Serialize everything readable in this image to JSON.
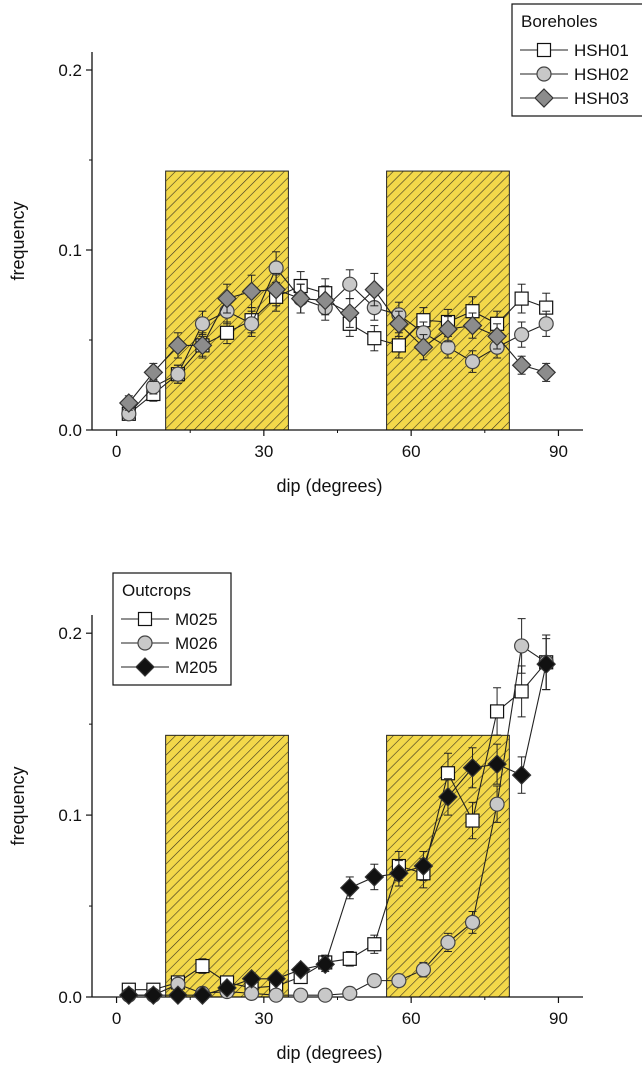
{
  "chart_data": [
    {
      "type": "scatter",
      "title": "",
      "xlabel": "dip (degrees)",
      "ylabel": "frequency",
      "xlim": [
        -5,
        95
      ],
      "ylim": [
        0,
        0.21
      ],
      "xticks": [
        "0",
        "30",
        "60",
        "90"
      ],
      "yticks": [
        "0.0",
        "0.1",
        "0.2"
      ],
      "shaded_ranges": [
        [
          10,
          35
        ],
        [
          55,
          80
        ]
      ],
      "shade_color": "#f3d84a",
      "legend": {
        "title": "Boreholes",
        "placement": "top-right"
      },
      "series": [
        {
          "name": "HSH01",
          "marker": "square",
          "fill": "#ffffff",
          "x": [
            2.5,
            7.5,
            12.5,
            17.5,
            22.5,
            27.5,
            32.5,
            37.5,
            42.5,
            47.5,
            52.5,
            57.5,
            62.5,
            67.5,
            72.5,
            77.5,
            82.5,
            87.5
          ],
          "y": [
            0.009,
            0.02,
            0.031,
            0.047,
            0.054,
            0.061,
            0.074,
            0.08,
            0.076,
            0.059,
            0.051,
            0.047,
            0.061,
            0.06,
            0.066,
            0.059,
            0.073,
            0.068
          ],
          "err": [
            0.003,
            0.004,
            0.005,
            0.006,
            0.006,
            0.007,
            0.008,
            0.008,
            0.008,
            0.007,
            0.007,
            0.007,
            0.007,
            0.007,
            0.008,
            0.007,
            0.008,
            0.008
          ]
        },
        {
          "name": "HSH02",
          "marker": "circle",
          "fill": "#c8c8c8",
          "x": [
            2.5,
            7.5,
            12.5,
            17.5,
            22.5,
            27.5,
            32.5,
            37.5,
            42.5,
            47.5,
            52.5,
            57.5,
            62.5,
            67.5,
            72.5,
            77.5,
            82.5,
            87.5
          ],
          "y": [
            0.009,
            0.024,
            0.031,
            0.059,
            0.066,
            0.059,
            0.09,
            0.073,
            0.068,
            0.081,
            0.068,
            0.064,
            0.054,
            0.046,
            0.038,
            0.046,
            0.053,
            0.059
          ],
          "err": [
            0.003,
            0.004,
            0.005,
            0.007,
            0.007,
            0.007,
            0.009,
            0.008,
            0.007,
            0.008,
            0.007,
            0.007,
            0.006,
            0.006,
            0.006,
            0.006,
            0.007,
            0.007
          ]
        },
        {
          "name": "HSH03",
          "marker": "diamond",
          "fill": "#8c8c8c",
          "x": [
            2.5,
            7.5,
            12.5,
            17.5,
            22.5,
            27.5,
            32.5,
            37.5,
            42.5,
            47.5,
            52.5,
            57.5,
            62.5,
            67.5,
            72.5,
            77.5,
            82.5,
            87.5
          ],
          "y": [
            0.015,
            0.032,
            0.047,
            0.047,
            0.073,
            0.077,
            0.078,
            0.073,
            0.072,
            0.065,
            0.078,
            0.059,
            0.046,
            0.056,
            0.058,
            0.052,
            0.036,
            0.032
          ],
          "err": [
            0.004,
            0.005,
            0.007,
            0.007,
            0.008,
            0.009,
            0.009,
            0.008,
            0.008,
            0.008,
            0.009,
            0.007,
            0.007,
            0.007,
            0.007,
            0.007,
            0.005,
            0.005
          ]
        }
      ]
    },
    {
      "type": "scatter",
      "title": "",
      "xlabel": "dip (degrees)",
      "ylabel": "frequency",
      "xlim": [
        -5,
        95
      ],
      "ylim": [
        0,
        0.21
      ],
      "xticks": [
        "0",
        "30",
        "60",
        "90"
      ],
      "yticks": [
        "0.0",
        "0.1",
        "0.2"
      ],
      "shaded_ranges": [
        [
          10,
          35
        ],
        [
          55,
          80
        ]
      ],
      "shade_color": "#f3d84a",
      "legend": {
        "title": "Outcrops",
        "placement": "top-left"
      },
      "series": [
        {
          "name": "M025",
          "marker": "square",
          "fill": "#ffffff",
          "x": [
            2.5,
            7.5,
            12.5,
            17.5,
            22.5,
            27.5,
            32.5,
            37.5,
            42.5,
            47.5,
            52.5,
            57.5,
            62.5,
            67.5,
            72.5,
            77.5,
            82.5,
            87.5
          ],
          "y": [
            0.004,
            0.004,
            0.008,
            0.017,
            0.008,
            0.005,
            0.006,
            0.011,
            0.019,
            0.021,
            0.029,
            0.072,
            0.068,
            0.123,
            0.097,
            0.157,
            0.168,
            0.184
          ],
          "err": [
            0.002,
            0.002,
            0.003,
            0.004,
            0.003,
            0.002,
            0.003,
            0.003,
            0.004,
            0.004,
            0.005,
            0.008,
            0.008,
            0.011,
            0.01,
            0.013,
            0.014,
            0.015
          ]
        },
        {
          "name": "M026",
          "marker": "circle",
          "fill": "#c8c8c8",
          "x": [
            2.5,
            7.5,
            12.5,
            17.5,
            22.5,
            27.5,
            32.5,
            37.5,
            42.5,
            47.5,
            52.5,
            57.5,
            62.5,
            67.5,
            72.5,
            77.5,
            82.5,
            87.5
          ],
          "y": [
            0.001,
            0.001,
            0.007,
            0.002,
            0.003,
            0.002,
            0.001,
            0.001,
            0.001,
            0.002,
            0.009,
            0.009,
            0.015,
            0.03,
            0.041,
            0.106,
            0.193,
            0.184
          ],
          "err": [
            0.001,
            0.001,
            0.003,
            0.002,
            0.002,
            0.002,
            0.003,
            0.003,
            0.002,
            0.002,
            0.003,
            0.003,
            0.004,
            0.005,
            0.006,
            0.01,
            0.015,
            0.015
          ]
        },
        {
          "name": "M205",
          "marker": "diamond",
          "fill": "#111111",
          "x": [
            2.5,
            7.5,
            12.5,
            17.5,
            22.5,
            27.5,
            32.5,
            37.5,
            42.5,
            47.5,
            52.5,
            57.5,
            62.5,
            67.5,
            72.5,
            77.5,
            82.5,
            87.5
          ],
          "y": [
            0.001,
            0.001,
            0.001,
            0.001,
            0.005,
            0.01,
            0.01,
            0.015,
            0.018,
            0.06,
            0.066,
            0.068,
            0.072,
            0.11,
            0.126,
            0.128,
            0.122,
            0.183
          ],
          "err": [
            0.001,
            0.001,
            0.001,
            0.001,
            0.002,
            0.003,
            0.003,
            0.003,
            0.004,
            0.006,
            0.007,
            0.007,
            0.008,
            0.01,
            0.011,
            0.011,
            0.01,
            0.014
          ]
        }
      ]
    }
  ]
}
